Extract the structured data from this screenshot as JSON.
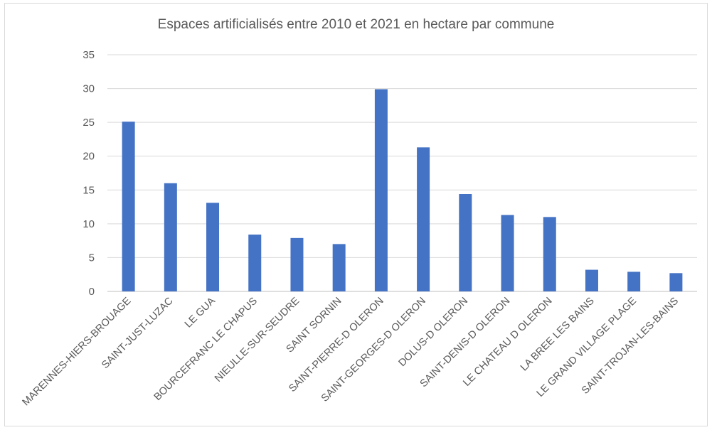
{
  "chart_data": {
    "type": "bar",
    "title": "Espaces artificialisés entre 2010 et 2021 en hectare par commune",
    "xlabel": "",
    "ylabel": "",
    "ylim": [
      0,
      35
    ],
    "yticks": [
      0,
      5,
      10,
      15,
      20,
      25,
      30,
      35
    ],
    "grid": true,
    "bar_color": "#4472c4",
    "categories": [
      "MARENNES-HIERS-BROUAGE",
      "SAINT-JUST-LUZAC",
      "LE GUA",
      "BOURCEFRANC LE CHAPUS",
      "NIEULLE-SUR-SEUDRE",
      "SAINT SORNIN",
      "SAINT-PIERRE-D OLERON",
      "SAINT-GEORGES-D OLERON",
      "DOLUS-D OLERON",
      "SAINT-DENIS-D OLERON",
      "LE CHATEAU D OLERON",
      "LA BREE LES BAINS",
      "LE GRAND VILLAGE PLAGE",
      "SAINT-TROJAN-LES-BAINS"
    ],
    "values": [
      25.1,
      16.0,
      13.1,
      8.4,
      7.9,
      7.0,
      29.9,
      21.3,
      14.4,
      11.3,
      11.0,
      3.2,
      2.9,
      2.7
    ]
  }
}
